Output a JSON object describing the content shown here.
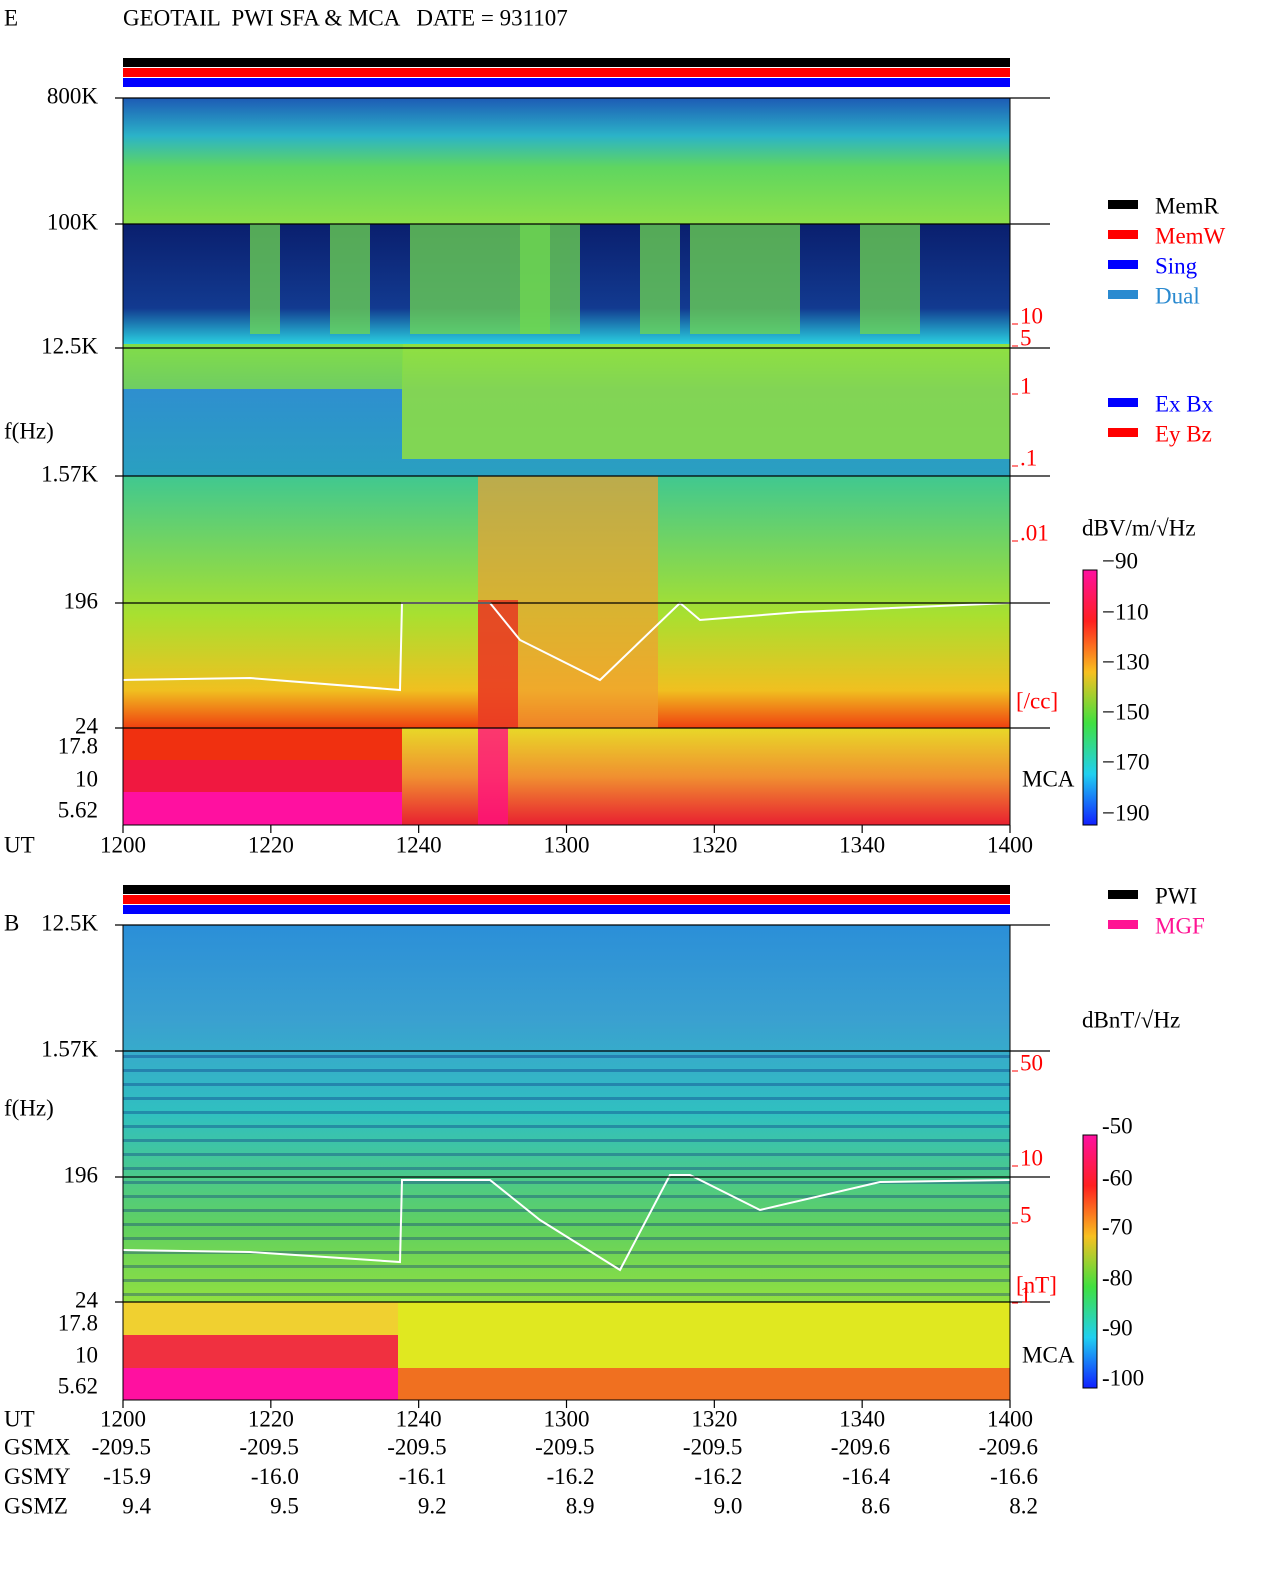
{
  "title": "GEOTAIL  PWI SFA & MCA   DATE = 931107",
  "panels": [
    {
      "label": "E",
      "y_label": "f(Hz)",
      "x_label": "UT",
      "freq_ticks": [
        "800K",
        "100K",
        "12.5K",
        "1.57K",
        "196",
        "24",
        "17.8",
        "10",
        "5.62"
      ],
      "time_ticks": [
        "1200",
        "1220",
        "1240",
        "1300",
        "1320",
        "1340",
        "1400"
      ],
      "density_ticks": [
        "10",
        "5",
        "1",
        ".1",
        ".01"
      ],
      "density_unit": "[/cc]",
      "mca": "MCA",
      "colorbar_unit": "dBV/m/√Hz",
      "colorbar_ticks": [
        "−90",
        "−110",
        "−130",
        "−150",
        "−170",
        "−190"
      ],
      "legend": [
        {
          "name": "MemR",
          "color": "#000000"
        },
        {
          "name": "MemW",
          "color": "#ff0000"
        },
        {
          "name": "Sing",
          "color": "#0000ff"
        },
        {
          "name": "Dual",
          "color": "#2a8ad0"
        }
      ],
      "legend2": [
        {
          "name": "Ex Bx",
          "color": "#0000ff"
        },
        {
          "name": "Ey Bz",
          "color": "#ff0000"
        }
      ]
    },
    {
      "label": "B",
      "y_label": "f(Hz)",
      "x_label": "UT",
      "freq_ticks": [
        "12.5K",
        "1.57K",
        "196",
        "24",
        "17.8",
        "10",
        "5.62"
      ],
      "time_ticks": [
        "1200",
        "1220",
        "1240",
        "1300",
        "1320",
        "1340",
        "1400"
      ],
      "density_ticks": [
        "50",
        "10",
        "5",
        "1"
      ],
      "density_unit": "[nT]",
      "mca": "MCA",
      "colorbar_unit": "dBnT/√Hz",
      "colorbar_ticks": [
        "-50",
        "-60",
        "-70",
        "-80",
        "-90",
        "-100"
      ],
      "legend": [
        {
          "name": "PWI",
          "color": "#000000"
        },
        {
          "name": "MGF",
          "color": "#ff1493"
        }
      ]
    }
  ],
  "orbit": [
    {
      "name": "GSMX",
      "values": [
        "-209.5",
        "-209.5",
        "-209.5",
        "-209.5",
        "-209.5",
        "-209.6",
        "-209.6"
      ]
    },
    {
      "name": "GSMY",
      "values": [
        "-15.9",
        "-16.0",
        "-16.1",
        "-16.2",
        "-16.2",
        "-16.4",
        "-16.6"
      ]
    },
    {
      "name": "GSMZ",
      "values": [
        "9.4",
        "9.5",
        "9.2",
        "8.9",
        "9.0",
        "8.6",
        "8.2"
      ]
    }
  ]
}
